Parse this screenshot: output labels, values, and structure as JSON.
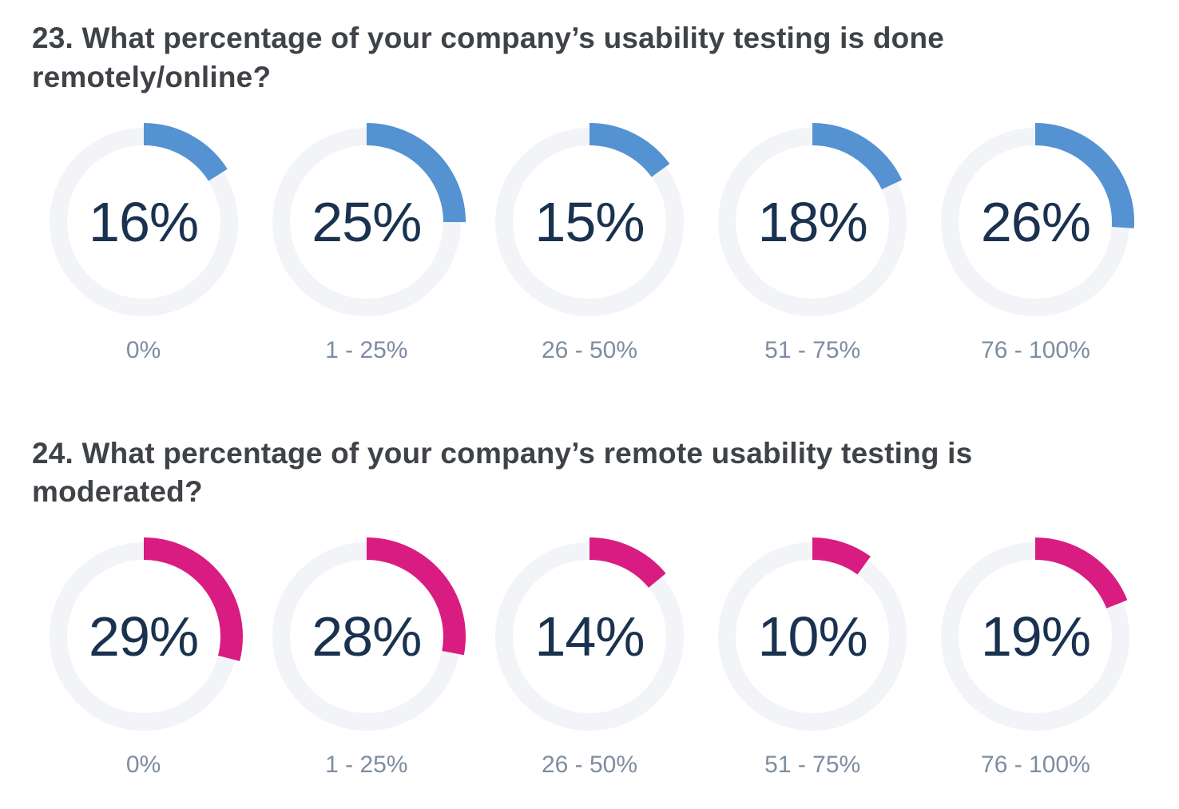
{
  "page": {
    "background": "#ffffff",
    "heading_color": "#3f4347",
    "value_text_color": "#1a3250",
    "caption_text_color": "#7e8da0",
    "track_color": "#f2f4f8"
  },
  "chart_data": [
    {
      "type": "donut",
      "title": "23. What percentage of your company’s usability testing is done remotely/online?",
      "accent_color": "#5592d2",
      "track_color": "#f2f4f8",
      "categories": [
        "0%",
        "1 - 25%",
        "26 - 50%",
        "51 - 75%",
        "76 - 100%"
      ],
      "values": [
        16,
        25,
        15,
        18,
        26
      ],
      "value_labels": [
        "16%",
        "25%",
        "15%",
        "18%",
        "26%"
      ],
      "unit": "%",
      "start_angle_deg": 0,
      "direction": "clockwise",
      "legend_position": "below-each"
    },
    {
      "type": "donut",
      "title": "24. What percentage of your company’s remote usability testing is moderated?",
      "accent_color": "#d91c81",
      "track_color": "#f2f4f8",
      "categories": [
        "0%",
        "1 - 25%",
        "26 - 50%",
        "51 - 75%",
        "76 - 100%"
      ],
      "values": [
        29,
        28,
        14,
        10,
        19
      ],
      "value_labels": [
        "29%",
        "28%",
        "14%",
        "10%",
        "19%"
      ],
      "unit": "%",
      "start_angle_deg": 0,
      "direction": "clockwise",
      "legend_position": "below-each"
    }
  ]
}
